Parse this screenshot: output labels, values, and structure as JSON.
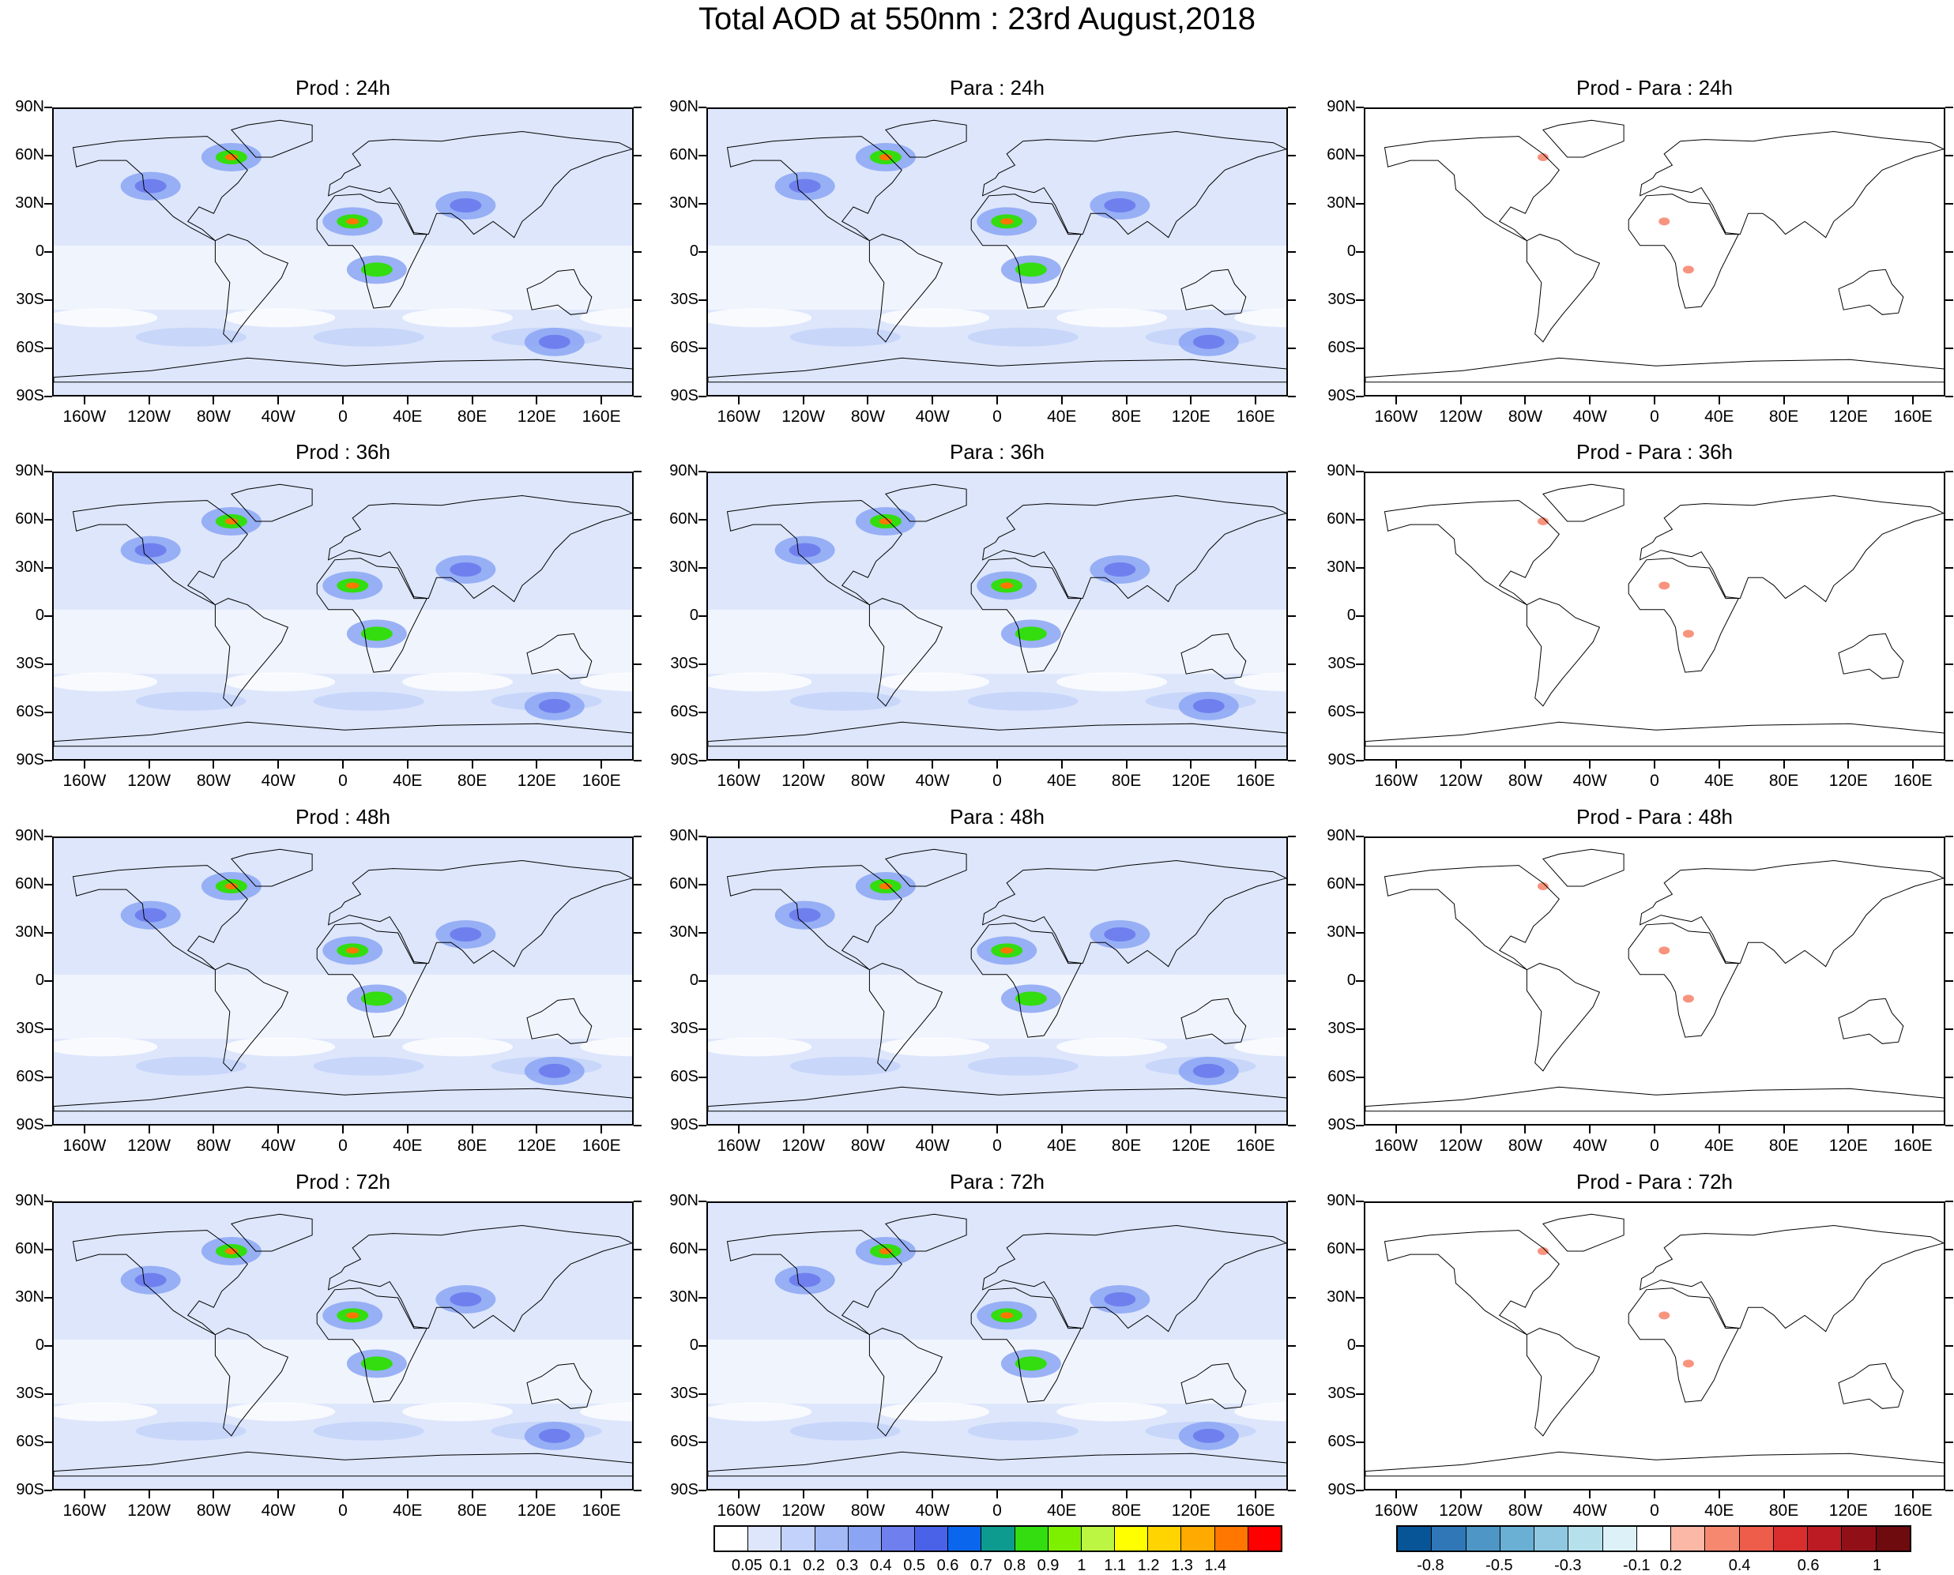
{
  "title": "Total AOD at 550nm : 23rd August,2018",
  "panels": [
    {
      "title": "Prod : 24h",
      "kind": "aod"
    },
    {
      "title": "Para : 24h",
      "kind": "aod"
    },
    {
      "title": "Prod - Para : 24h",
      "kind": "diff"
    },
    {
      "title": "Prod : 36h",
      "kind": "aod"
    },
    {
      "title": "Para : 36h",
      "kind": "aod"
    },
    {
      "title": "Prod - Para : 36h",
      "kind": "diff"
    },
    {
      "title": "Prod : 48h",
      "kind": "aod"
    },
    {
      "title": "Para : 48h",
      "kind": "aod"
    },
    {
      "title": "Prod - Para : 48h",
      "kind": "diff"
    },
    {
      "title": "Prod : 72h",
      "kind": "aod"
    },
    {
      "title": "Para : 72h",
      "kind": "aod"
    },
    {
      "title": "Prod - Para : 72h",
      "kind": "diff"
    }
  ],
  "lat_labels": [
    "90N",
    "60N",
    "30N",
    "0",
    "30S",
    "60S",
    "90S"
  ],
  "lon_labels": [
    "160W",
    "120W",
    "80W",
    "40W",
    "0",
    "40E",
    "80E",
    "120E",
    "160E"
  ],
  "aod_colorbar": {
    "labels": [
      "0.05",
      "0.1",
      "0.2",
      "0.3",
      "0.4",
      "0.5",
      "0.6",
      "0.7",
      "0.8",
      "0.9",
      "1",
      "1.1",
      "1.2",
      "1.3",
      "1.4"
    ],
    "colors": [
      "#ffffff",
      "#dde6fb",
      "#c3d2fa",
      "#a3baf6",
      "#8ba4f3",
      "#6f80ee",
      "#4a62e8",
      "#0b66ee",
      "#0d9b90",
      "#33dd10",
      "#7df000",
      "#bcf542",
      "#ffff00",
      "#ffd400",
      "#ffaa00",
      "#ff7700",
      "#ff0000"
    ]
  },
  "diff_colorbar": {
    "labels": [
      "-0.8",
      "-0.5",
      "-0.3",
      "-0.1",
      "0.2",
      "0.4",
      "0.6",
      "1"
    ],
    "colors": [
      "#075497",
      "#2f77b6",
      "#4d96c6",
      "#6ab0d5",
      "#8fc8e0",
      "#b5e0ec",
      "#dcf2f8",
      "#ffffff",
      "#fbb8a6",
      "#f78870",
      "#ee5c4a",
      "#d92d2e",
      "#bb1b22",
      "#911018",
      "#6d0b0f"
    ]
  },
  "hotspots": [
    {
      "lon": -120,
      "lat": 42,
      "level": 0.6
    },
    {
      "lon": -70,
      "lat": 60,
      "level": 1.0
    },
    {
      "lon": 5,
      "lat": 20,
      "level": 0.8
    },
    {
      "lon": 20,
      "lat": -10,
      "level": 0.7
    },
    {
      "lon": 75,
      "lat": 30,
      "level": 0.5
    },
    {
      "lon": 130,
      "lat": -55,
      "level": 0.5
    }
  ]
}
